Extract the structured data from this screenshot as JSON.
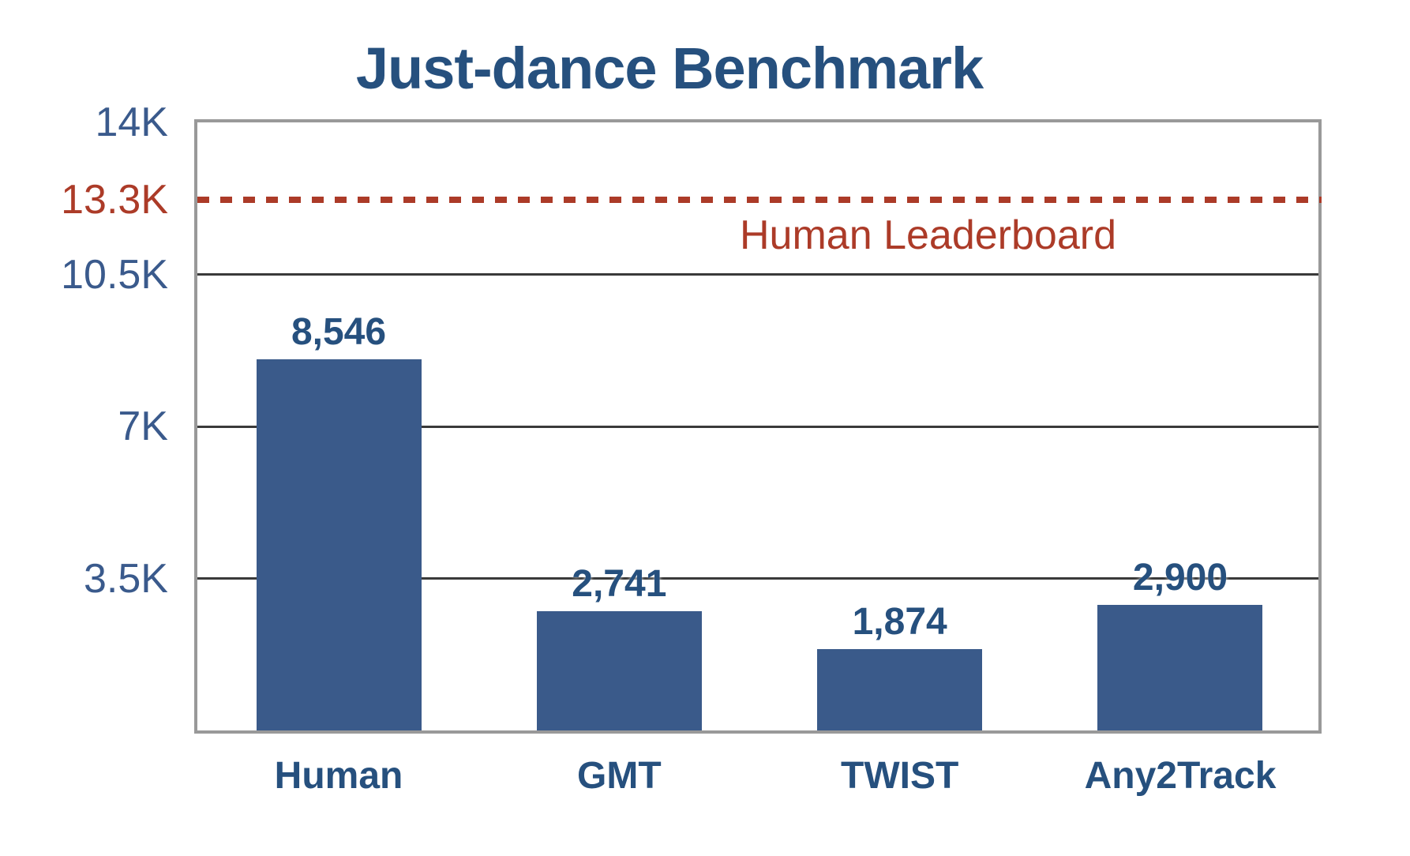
{
  "chart_data": {
    "type": "bar",
    "title": "Just-dance Benchmark",
    "categories": [
      "Human",
      "GMT",
      "TWIST",
      "Any2Track"
    ],
    "values": [
      8546,
      2741,
      1874,
      2900
    ],
    "value_labels": [
      "8,546",
      "2,741",
      "1,874",
      "2,900"
    ],
    "ylim": [
      0,
      14000
    ],
    "grid": true,
    "y_ticks": [
      {
        "label": "14K",
        "value": 14000,
        "role": "blue"
      },
      {
        "label": "13.3K",
        "value": 13300,
        "role": "red"
      },
      {
        "label": "10.5K",
        "value": 10500,
        "role": "blue"
      },
      {
        "label": "7K",
        "value": 7000,
        "role": "blue"
      },
      {
        "label": "3.5K",
        "value": 3500,
        "role": "blue"
      }
    ],
    "reference_line": {
      "label": "Human Leaderboard",
      "value": 13300
    },
    "colors": {
      "bar": "#3A5A8A",
      "title_navy": "#26507E",
      "tick_blue": "#3A5A8C",
      "accent_red": "#AC3B28",
      "gridline": "#3A3A3A",
      "border": "#999999"
    }
  }
}
